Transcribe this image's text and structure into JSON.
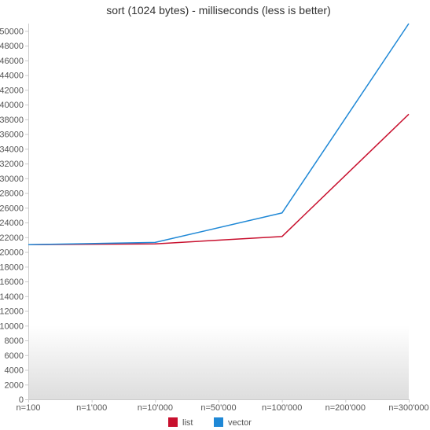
{
  "chart_data": {
    "type": "line",
    "title": "sort (1024 bytes) - milliseconds (less is better)",
    "xlabel": "",
    "ylabel": "",
    "categories": [
      "n=100",
      "n=1'000",
      "n=10'000",
      "n=50'000",
      "n=100'000",
      "n=200'000",
      "n=300'000"
    ],
    "x_positions": [
      0,
      1,
      2,
      3,
      4,
      5,
      6
    ],
    "ylim": [
      0,
      51000
    ],
    "yticks": [
      0,
      2000,
      4000,
      6000,
      8000,
      10000,
      12000,
      14000,
      16000,
      18000,
      20000,
      22000,
      24000,
      26000,
      28000,
      30000,
      32000,
      34000,
      36000,
      38000,
      40000,
      42000,
      44000,
      46000,
      48000,
      50000
    ],
    "ytick_labels": [
      "0",
      "2000",
      "4000",
      "6000",
      "8000",
      "10000",
      "12000",
      "14000",
      "16000",
      "18000",
      "20000",
      "22000",
      "24000",
      "26000",
      "28000",
      "30000",
      "32000",
      "34000",
      "36000",
      "38000",
      "40000",
      "42000",
      "44000",
      "46000",
      "48000",
      "50000"
    ],
    "series": [
      {
        "name": "list",
        "color": "#c8102e",
        "points": [
          [
            0,
            21000
          ],
          [
            2,
            21100
          ],
          [
            4,
            22100
          ],
          [
            6,
            38700
          ]
        ]
      },
      {
        "name": "vector",
        "color": "#1f88d6",
        "points": [
          [
            0,
            21000
          ],
          [
            2,
            21300
          ],
          [
            4,
            25300
          ],
          [
            6,
            51000
          ]
        ]
      }
    ],
    "grid": false,
    "legend_position": "bottom-center"
  }
}
